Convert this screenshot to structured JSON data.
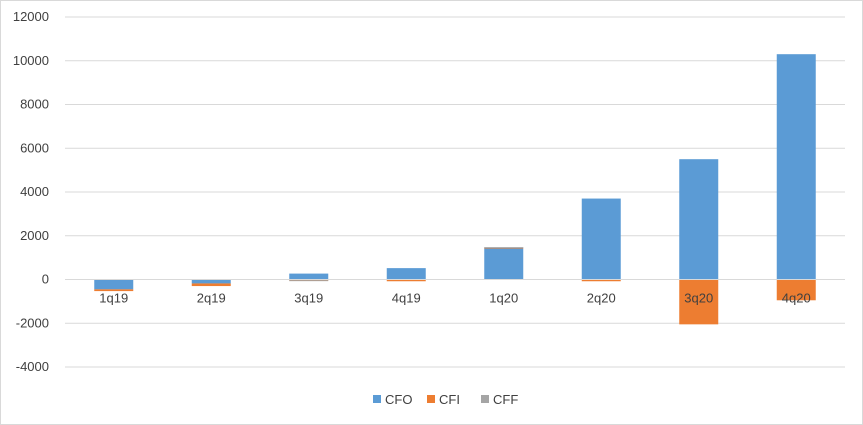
{
  "chart_data": {
    "type": "bar",
    "stacked": true,
    "categories": [
      "1q19",
      "2q19",
      "3q19",
      "4q19",
      "1q20",
      "2q20",
      "3q20",
      "4q20"
    ],
    "series": [
      {
        "name": "CFO",
        "color": "#5b9bd5",
        "values": [
          -450,
          -180,
          270,
          520,
          1420,
          3700,
          5500,
          10300
        ]
      },
      {
        "name": "CFI",
        "color": "#ed7d31",
        "values": [
          -80,
          -120,
          -30,
          -80,
          40,
          -80,
          -2050,
          -950
        ]
      },
      {
        "name": "CFF",
        "color": "#a5a5a5",
        "values": [
          0,
          0,
          -20,
          0,
          20,
          0,
          0,
          0
        ]
      }
    ],
    "y_ticks": [
      "12000",
      "10000",
      "8000",
      "6000",
      "4000",
      "2000",
      "0",
      "-2000",
      "-4000"
    ],
    "ylim": [
      -4000,
      12000
    ],
    "grid": true,
    "legend_position": "bottom"
  }
}
